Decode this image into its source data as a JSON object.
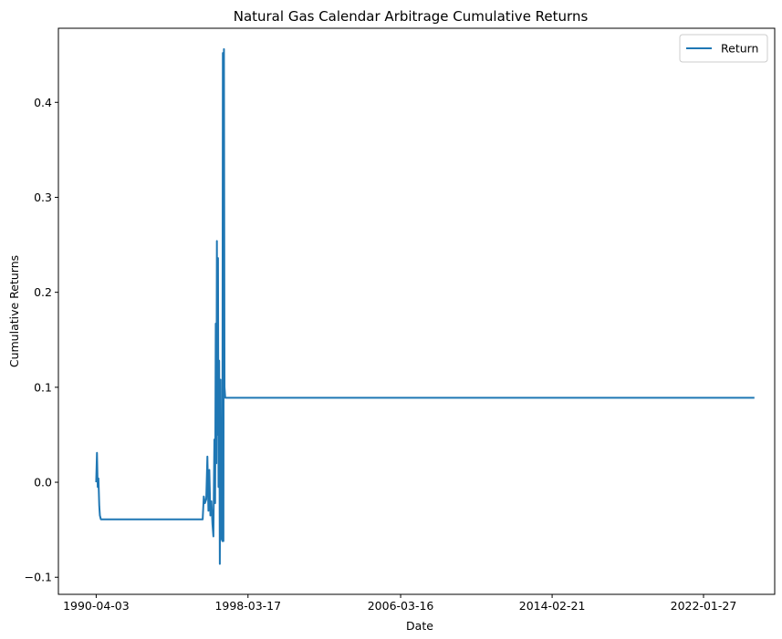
{
  "chart_data": {
    "type": "line",
    "title": "Natural Gas Calendar Arbitrage Cumulative Returns",
    "xlabel": "Date",
    "ylabel": "Cumulative Returns",
    "x_tick_labels": [
      "1990-04-03",
      "1998-03-17",
      "2006-03-16",
      "2014-02-21",
      "2022-01-27"
    ],
    "y_ticks": [
      -0.1,
      0.0,
      0.1,
      0.2,
      0.3,
      0.4
    ],
    "y_tick_labels": [
      "−0.1",
      "0.0",
      "0.1",
      "0.2",
      "0.3",
      "0.4"
    ],
    "xlim": [
      "1988-04-10",
      "2025-10-20"
    ],
    "ylim": [
      -0.118,
      0.478
    ],
    "grid": false,
    "legend": "top-right",
    "series": [
      {
        "name": "Return",
        "color": "#1f77b4",
        "points": [
          [
            "1990-04-03",
            0.0
          ],
          [
            "1990-04-18",
            0.031
          ],
          [
            "1990-05-02",
            -0.005
          ],
          [
            "1990-05-16",
            0.004
          ],
          [
            "1990-06-01",
            -0.025
          ],
          [
            "1990-06-13",
            -0.035
          ],
          [
            "1990-07-02",
            -0.039
          ],
          [
            "1995-11-01",
            -0.039
          ],
          [
            "1995-11-22",
            -0.015
          ],
          [
            "1995-12-14",
            -0.022
          ],
          [
            "1996-01-08",
            -0.018
          ],
          [
            "1996-01-30",
            0.027
          ],
          [
            "1996-02-19",
            -0.03
          ],
          [
            "1996-03-07",
            0.013
          ],
          [
            "1996-03-27",
            -0.035
          ],
          [
            "1996-04-16",
            -0.02
          ],
          [
            "1996-05-06",
            -0.044
          ],
          [
            "1996-05-24",
            -0.057
          ],
          [
            "1996-06-12",
            0.045
          ],
          [
            "1996-06-26",
            -0.022
          ],
          [
            "1996-07-08",
            0.167
          ],
          [
            "1996-07-19",
            0.02
          ],
          [
            "1996-07-30",
            0.254
          ],
          [
            "1996-08-09",
            0.05
          ],
          [
            "1996-08-20",
            0.236
          ],
          [
            "1996-08-30",
            -0.005
          ],
          [
            "1996-09-11",
            0.128
          ],
          [
            "1996-09-24",
            -0.086
          ],
          [
            "1996-10-07",
            0.108
          ],
          [
            "1996-10-18",
            -0.06
          ],
          [
            "1996-10-31",
            0.062
          ],
          [
            "1996-11-11",
            -0.062
          ],
          [
            "1996-11-21",
            0.452
          ],
          [
            "1996-12-02",
            -0.062
          ],
          [
            "1996-12-12",
            0.456
          ],
          [
            "1996-12-23",
            0.1
          ],
          [
            "1997-01-06",
            0.089
          ],
          [
            "2024-09-27",
            0.089
          ]
        ]
      }
    ]
  }
}
